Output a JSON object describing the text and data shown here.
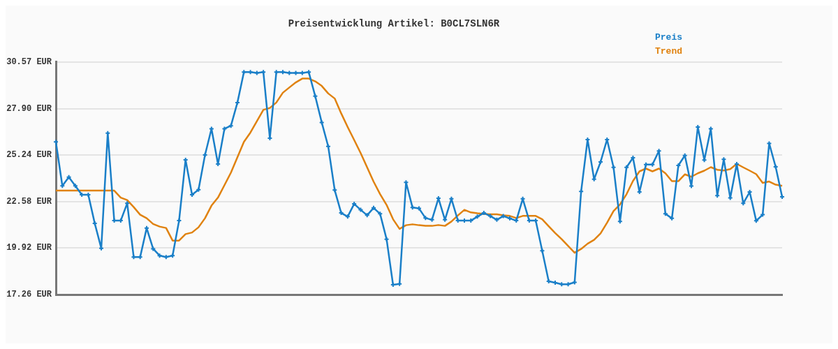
{
  "chart_data": {
    "type": "line",
    "title": "Preisentwicklung Artikel: B0CL7SLN6R",
    "categories": [
      null,
      null,
      null,
      null,
      null,
      null,
      null,
      null,
      null,
      null,
      null,
      null,
      null,
      null,
      null,
      null,
      null,
      null,
      null,
      null,
      null,
      null,
      null,
      null,
      null,
      null,
      null,
      null,
      null,
      null,
      null,
      null,
      null,
      null,
      null,
      null,
      null,
      null,
      null,
      null,
      null,
      null,
      null,
      null,
      null,
      null,
      null,
      null,
      null,
      null,
      null,
      null,
      null,
      null,
      null,
      null,
      null,
      null,
      null,
      null,
      null,
      null,
      null,
      null,
      null,
      null,
      null,
      null,
      null,
      null,
      null,
      null,
      null,
      null,
      null,
      null,
      null,
      null,
      null,
      null,
      null,
      null,
      null,
      null,
      null,
      null,
      null,
      null,
      null,
      null,
      null,
      null,
      null,
      null,
      null,
      null,
      null,
      null,
      null,
      null,
      null,
      null,
      null,
      null,
      null,
      null,
      null,
      null,
      null,
      null,
      null,
      null,
      null
    ],
    "series": [
      {
        "name": "Preis",
        "color": "#1a7fc8",
        "marker": "cross",
        "values": [
          26.0,
          23.48,
          23.98,
          23.48,
          22.97,
          22.97,
          21.33,
          19.91,
          26.5,
          21.49,
          21.49,
          22.48,
          19.41,
          19.41,
          21.06,
          19.88,
          19.49,
          19.41,
          19.49,
          21.49,
          24.97,
          22.97,
          23.26,
          25.25,
          26.75,
          24.73,
          26.75,
          26.92,
          28.25,
          29.99,
          29.99,
          29.94,
          29.99,
          26.21,
          29.99,
          29.99,
          29.94,
          29.94,
          29.94,
          29.99,
          28.61,
          27.11,
          25.74,
          23.24,
          21.93,
          21.72,
          22.45,
          22.11,
          21.8,
          22.22,
          21.88,
          20.43,
          17.82,
          17.87,
          23.68,
          22.24,
          22.19,
          21.64,
          21.54,
          22.77,
          21.54,
          22.74,
          21.49,
          21.49,
          21.49,
          21.72,
          21.93,
          21.75,
          21.54,
          21.75,
          21.62,
          21.49,
          22.74,
          21.49,
          21.49,
          19.77,
          18.02,
          17.94,
          17.85,
          17.85,
          17.96,
          23.16,
          26.13,
          23.86,
          24.85,
          26.13,
          24.54,
          21.44,
          24.54,
          25.09,
          23.13,
          24.7,
          24.7,
          25.48,
          21.88,
          21.62,
          24.65,
          25.22,
          23.47,
          26.85,
          24.96,
          26.75,
          22.92,
          25.0,
          22.79,
          24.73,
          22.48,
          23.13,
          21.48,
          21.83,
          25.91,
          24.57,
          22.85
        ]
      },
      {
        "name": "Trend",
        "color": "#e0820f",
        "marker": "none",
        "values": [
          23.21,
          23.21,
          23.21,
          23.21,
          23.21,
          23.21,
          23.21,
          23.21,
          23.21,
          23.21,
          22.81,
          22.67,
          22.27,
          21.83,
          21.63,
          21.3,
          21.15,
          21.07,
          20.35,
          20.35,
          20.72,
          20.81,
          21.11,
          21.63,
          22.35,
          22.81,
          23.52,
          24.24,
          25.12,
          26.0,
          26.53,
          27.18,
          27.83,
          27.94,
          28.25,
          28.81,
          29.11,
          29.4,
          29.62,
          29.62,
          29.46,
          29.2,
          28.77,
          28.48,
          27.63,
          26.85,
          26.11,
          25.36,
          24.54,
          23.72,
          23.01,
          22.39,
          21.57,
          21.02,
          21.23,
          21.28,
          21.23,
          21.19,
          21.19,
          21.24,
          21.19,
          21.44,
          21.79,
          22.11,
          21.96,
          21.91,
          21.87,
          21.85,
          21.85,
          21.79,
          21.76,
          21.64,
          21.76,
          21.76,
          21.76,
          21.57,
          21.17,
          20.78,
          20.43,
          20.04,
          19.65,
          19.87,
          20.17,
          20.39,
          20.76,
          21.37,
          22.04,
          22.42,
          23.0,
          23.76,
          24.31,
          24.47,
          24.31,
          24.47,
          24.2,
          23.75,
          23.75,
          24.14,
          24.0,
          24.2,
          24.35,
          24.55,
          24.4,
          24.36,
          24.44,
          24.74,
          24.54,
          24.35,
          24.15,
          23.65,
          23.73,
          23.55,
          23.48
        ]
      }
    ],
    "ylim": [
      17.26,
      30.57
    ],
    "yticks": [
      {
        "value": 17.26,
        "label": "17.26 EUR"
      },
      {
        "value": 19.92,
        "label": "19.92 EUR"
      },
      {
        "value": 22.58,
        "label": "22.58 EUR"
      },
      {
        "value": 25.24,
        "label": "25.24 EUR"
      },
      {
        "value": 27.9,
        "label": "27.90 EUR"
      },
      {
        "value": 30.57,
        "label": "30.57 EUR"
      }
    ],
    "grid": "y",
    "legend": "top right",
    "line_style": "solid",
    "tick_labels": "y"
  }
}
